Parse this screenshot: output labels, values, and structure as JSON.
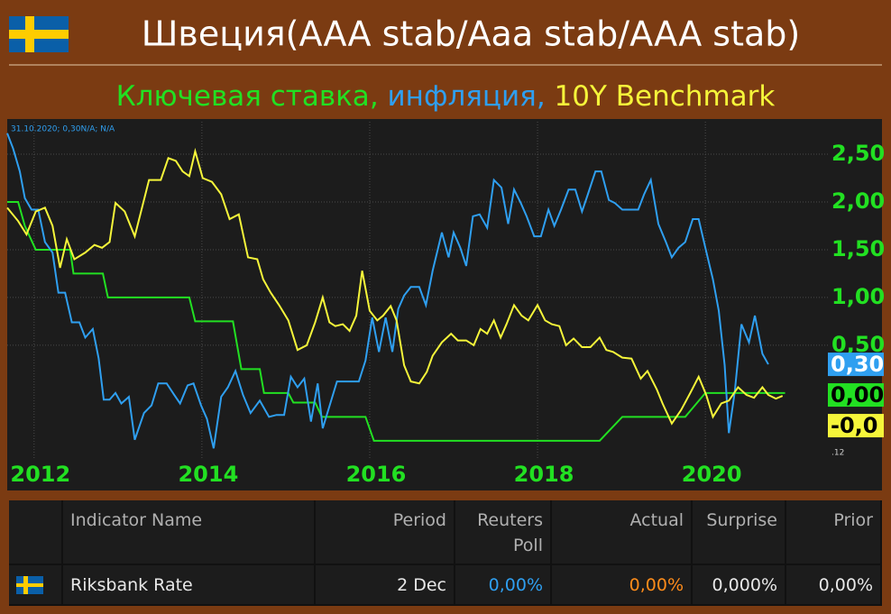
{
  "chart_data": {
    "type": "line",
    "title": "Швеция(AAA stab/Aaa stab/AAA stab)",
    "subtitle_separator": ",",
    "annotation": "31.10.2020; 0,30N/A; N/A",
    "corner_note": ".12",
    "xlim": [
      2011.68,
      2021.46
    ],
    "xticks": [
      2012,
      2014,
      2016,
      2018,
      2020
    ],
    "ylim": [
      -0.7,
      2.84
    ],
    "yticks": [
      {
        "value": 0.5,
        "label": "0,50"
      },
      {
        "value": 1,
        "label": "1,00"
      },
      {
        "value": 1.5,
        "label": "1,50"
      },
      {
        "value": 2,
        "label": "2,00"
      },
      {
        "value": 2.5,
        "label": "2,50"
      }
    ],
    "grid": true,
    "series": [
      {
        "name": "Ключевая ставка",
        "color": "#22e022",
        "end_label": "0,00",
        "x": [
          2011.68,
          2011.81,
          2011.89,
          2012.02,
          2012.43,
          2012.47,
          2012.82,
          2012.88,
          2013.85,
          2013.92,
          2014.37,
          2014.47,
          2014.69,
          2014.74,
          2015.03,
          2015.09,
          2015.35,
          2015.43,
          2015.95,
          2016.05,
          2018.74,
          2019.01,
          2019.76,
          2020.0,
          2020.95
        ],
        "values": [
          2.0,
          2.0,
          1.75,
          1.5,
          1.5,
          1.25,
          1.25,
          1.0,
          1.0,
          0.75,
          0.75,
          0.25,
          0.25,
          0.0,
          0.0,
          -0.1,
          -0.1,
          -0.25,
          -0.25,
          -0.5,
          -0.5,
          -0.25,
          -0.25,
          0.0,
          0.0
        ]
      },
      {
        "name": "инфляция",
        "color": "#2f9ff0",
        "end_label": "0,30",
        "x": [
          2011.68,
          2011.75,
          2011.83,
          2011.89,
          2011.97,
          2012.05,
          2012.13,
          2012.22,
          2012.29,
          2012.37,
          2012.45,
          2012.54,
          2012.61,
          2012.7,
          2012.77,
          2012.83,
          2012.9,
          2012.97,
          2013.04,
          2013.13,
          2013.2,
          2013.31,
          2013.4,
          2013.48,
          2013.58,
          2013.67,
          2013.74,
          2013.83,
          2013.9,
          2013.99,
          2014.06,
          2014.14,
          2014.23,
          2014.31,
          2014.4,
          2014.49,
          2014.58,
          2014.69,
          2014.8,
          2014.89,
          2014.98,
          2015.06,
          2015.14,
          2015.22,
          2015.3,
          2015.38,
          2015.44,
          2015.53,
          2015.61,
          2015.78,
          2015.87,
          2015.95,
          2016.03,
          2016.11,
          2016.19,
          2016.27,
          2016.34,
          2016.41,
          2016.49,
          2016.59,
          2016.67,
          2016.75,
          2016.86,
          2016.94,
          2017.0,
          2017.08,
          2017.15,
          2017.23,
          2017.31,
          2017.4,
          2017.48,
          2017.57,
          2017.65,
          2017.72,
          2017.8,
          2017.87,
          2017.96,
          2018.04,
          2018.13,
          2018.2,
          2018.28,
          2018.37,
          2018.45,
          2018.53,
          2018.6,
          2018.69,
          2018.76,
          2018.85,
          2018.92,
          2019.01,
          2019.12,
          2019.2,
          2019.27,
          2019.35,
          2019.44,
          2019.53,
          2019.6,
          2019.68,
          2019.76,
          2019.85,
          2019.92,
          2020.0,
          2020.09,
          2020.16,
          2020.23,
          2020.28,
          2020.35,
          2020.43,
          2020.52,
          2020.59,
          2020.68,
          2020.75
        ],
        "values": [
          2.72,
          2.56,
          2.32,
          2.04,
          1.92,
          1.92,
          1.58,
          1.47,
          1.05,
          1.05,
          0.74,
          0.74,
          0.58,
          0.67,
          0.36,
          -0.07,
          -0.07,
          0.0,
          -0.11,
          -0.04,
          -0.49,
          -0.21,
          -0.13,
          0.1,
          0.1,
          -0.02,
          -0.11,
          0.08,
          0.1,
          -0.13,
          -0.27,
          -0.58,
          -0.04,
          0.06,
          0.23,
          -0.02,
          -0.21,
          -0.08,
          -0.25,
          -0.23,
          -0.23,
          0.17,
          0.06,
          0.15,
          -0.3,
          0.1,
          -0.37,
          -0.11,
          0.12,
          0.12,
          0.12,
          0.34,
          0.79,
          0.43,
          0.79,
          0.43,
          0.88,
          1.02,
          1.11,
          1.11,
          0.92,
          1.28,
          1.68,
          1.42,
          1.68,
          1.52,
          1.33,
          1.85,
          1.87,
          1.73,
          2.23,
          2.15,
          1.77,
          2.13,
          1.99,
          1.85,
          1.64,
          1.64,
          1.92,
          1.75,
          1.92,
          2.13,
          2.13,
          1.9,
          2.08,
          2.32,
          2.32,
          2.02,
          1.99,
          1.92,
          1.92,
          1.92,
          2.08,
          2.23,
          1.77,
          1.58,
          1.42,
          1.52,
          1.58,
          1.82,
          1.82,
          1.52,
          1.19,
          0.86,
          0.29,
          -0.42,
          0.01,
          0.72,
          0.53,
          0.81,
          0.41,
          0.3
        ]
      },
      {
        "name": "10Y Benchmark",
        "color": "#f5f53a",
        "end_label": "-0,0",
        "x": [
          2011.68,
          2011.81,
          2011.91,
          2012.02,
          2012.13,
          2012.22,
          2012.31,
          2012.39,
          2012.48,
          2012.61,
          2012.72,
          2012.81,
          2012.9,
          2012.97,
          2013.08,
          2013.2,
          2013.37,
          2013.51,
          2013.6,
          2013.69,
          2013.77,
          2013.85,
          2013.92,
          2014.01,
          2014.12,
          2014.23,
          2014.33,
          2014.44,
          2014.55,
          2014.66,
          2014.73,
          2014.82,
          2014.92,
          2015.03,
          2015.14,
          2015.25,
          2015.35,
          2015.44,
          2015.52,
          2015.59,
          2015.68,
          2015.76,
          2015.84,
          2015.91,
          2016.0,
          2016.09,
          2016.16,
          2016.25,
          2016.32,
          2016.41,
          2016.49,
          2016.59,
          2016.68,
          2016.75,
          2016.86,
          2016.97,
          2017.05,
          2017.15,
          2017.24,
          2017.32,
          2017.4,
          2017.48,
          2017.56,
          2017.63,
          2017.72,
          2017.81,
          2017.89,
          2018.0,
          2018.09,
          2018.17,
          2018.26,
          2018.34,
          2018.43,
          2018.53,
          2018.63,
          2018.74,
          2018.82,
          2018.9,
          2019.01,
          2019.12,
          2019.23,
          2019.31,
          2019.42,
          2019.49,
          2019.6,
          2019.71,
          2019.82,
          2019.92,
          2020.01,
          2020.09,
          2020.19,
          2020.28,
          2020.39,
          2020.49,
          2020.58,
          2020.68,
          2020.75,
          2020.84,
          2020.92
        ],
        "values": [
          1.94,
          1.8,
          1.66,
          1.9,
          1.94,
          1.75,
          1.31,
          1.61,
          1.4,
          1.47,
          1.55,
          1.52,
          1.58,
          1.99,
          1.9,
          1.64,
          2.23,
          2.23,
          2.46,
          2.43,
          2.32,
          2.27,
          2.53,
          2.25,
          2.21,
          2.08,
          1.82,
          1.87,
          1.42,
          1.4,
          1.19,
          1.05,
          0.92,
          0.76,
          0.45,
          0.5,
          0.74,
          1.0,
          0.74,
          0.7,
          0.72,
          0.65,
          0.81,
          1.28,
          0.86,
          0.76,
          0.81,
          0.91,
          0.76,
          0.29,
          0.12,
          0.1,
          0.22,
          0.39,
          0.53,
          0.62,
          0.55,
          0.55,
          0.5,
          0.67,
          0.62,
          0.76,
          0.58,
          0.72,
          0.92,
          0.81,
          0.76,
          0.92,
          0.76,
          0.72,
          0.7,
          0.5,
          0.57,
          0.48,
          0.48,
          0.58,
          0.45,
          0.43,
          0.37,
          0.36,
          0.15,
          0.23,
          0.04,
          -0.11,
          -0.32,
          -0.18,
          0.0,
          0.17,
          -0.02,
          -0.25,
          -0.11,
          -0.08,
          0.06,
          -0.02,
          -0.05,
          0.06,
          -0.02,
          -0.06,
          -0.03
        ]
      }
    ]
  },
  "table": {
    "headers": [
      "Indicator Name",
      "Period",
      "Reuters Poll",
      "Actual",
      "Surprise",
      "Prior"
    ],
    "rows": [
      [
        "Riksbank Rate",
        "2 Dec",
        "0,00%",
        "0,00%",
        "0,000%",
        "0,00%"
      ]
    ]
  }
}
